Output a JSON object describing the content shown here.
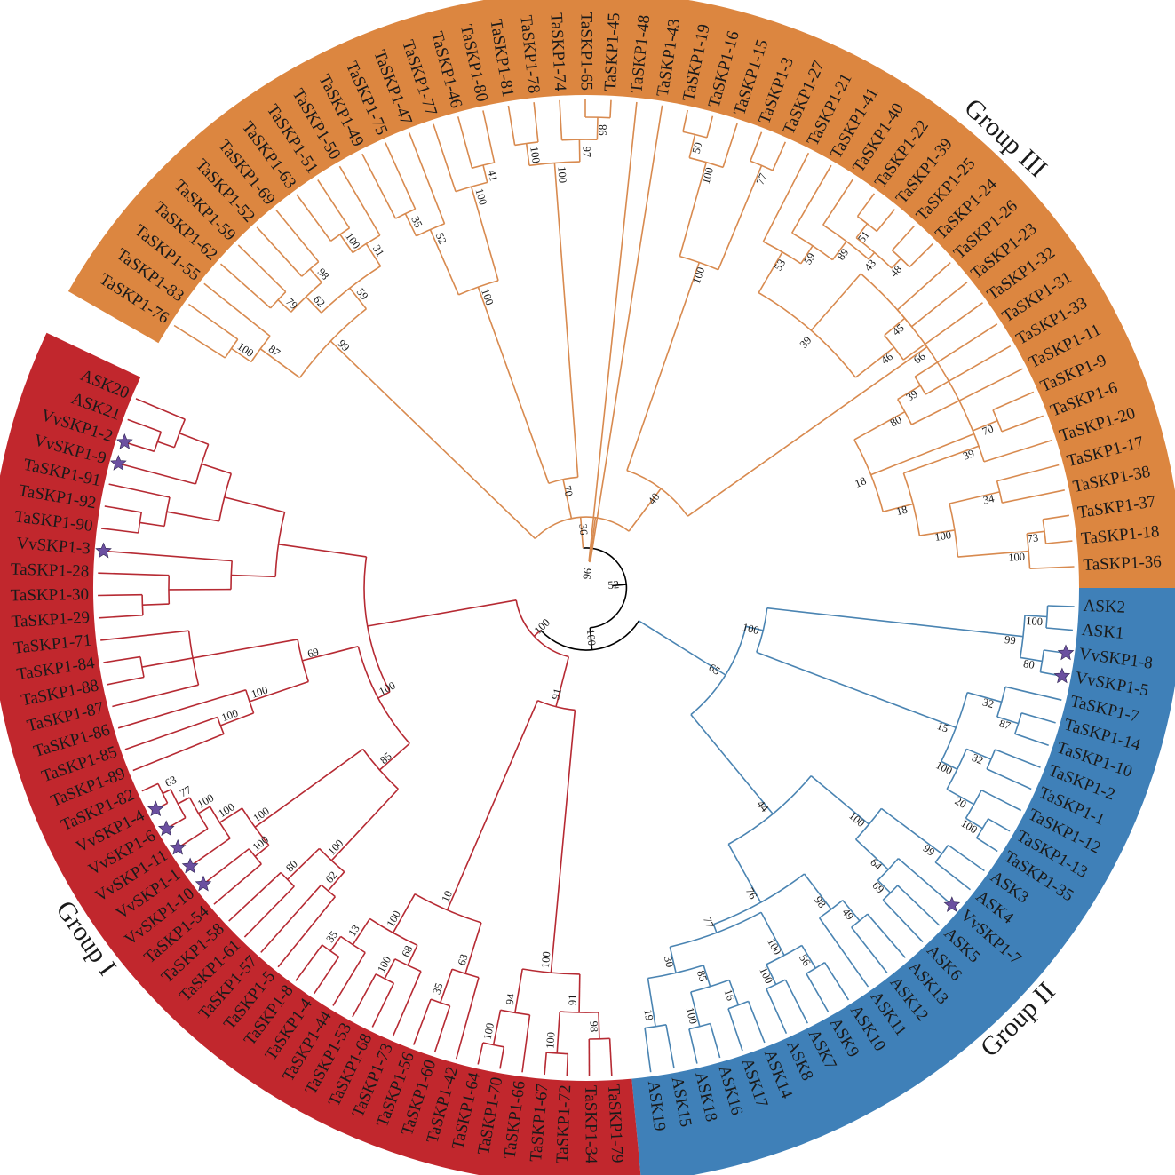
{
  "colors": {
    "group1_band": "#c1272d",
    "group2_band": "#3f80b8",
    "group3_band": "#dc8640",
    "group1_line": "#b62a33",
    "group2_line": "#4a84b2",
    "group3_line": "#d88a4f",
    "root_line": "#000000",
    "star": "#6b4fa0"
  },
  "groups": [
    {
      "id": "g3",
      "label": "Group III"
    },
    {
      "id": "g2",
      "label": "Group II"
    },
    {
      "id": "g1",
      "label": "Group I"
    }
  ],
  "leaves": {
    "g3": [
      "TaSKP1-76",
      "TaSKP1-83",
      "TaSKP1-55",
      "TaSKP1-62",
      "TaSKP1-59",
      "TaSKP1-52",
      "TaSKP1-69",
      "TaSKP1-63",
      "TaSKP1-51",
      "TaSKP1-50",
      "TaSKP1-49",
      "TaSKP1-75",
      "TaSKP1-47",
      "TaSKP1-77",
      "TaSKP1-46",
      "TaSKP1-80",
      "TaSKP1-81",
      "TaSKP1-78",
      "TaSKP1-74",
      "TaSKP1-65",
      "TaSKP1-45",
      "TaSKP1-48",
      "TaSKP1-43",
      "TaSKP1-19",
      "TaSKP1-16",
      "TaSKP1-15",
      "TaSKP1-3",
      "TaSKP1-27",
      "TaSKP1-21",
      "TaSKP1-41",
      "TaSKP1-40",
      "TaSKP1-22",
      "TaSKP1-39",
      "TaSKP1-25",
      "TaSKP1-24",
      "TaSKP1-26",
      "TaSKP1-23",
      "TaSKP1-32",
      "TaSKP1-31",
      "TaSKP1-33",
      "TaSKP1-11",
      "TaSKP1-9",
      "TaSKP1-6",
      "TaSKP1-20",
      "TaSKP1-17",
      "TaSKP1-38",
      "TaSKP1-37",
      "TaSKP1-18",
      "TaSKP1-36"
    ],
    "g2": [
      "ASK2",
      "ASK1",
      "VvSKP1-8",
      "VvSKP1-5",
      "TaSKP1-7",
      "TaSKP1-14",
      "TaSKP1-10",
      "TaSKP1-2",
      "TaSKP1-1",
      "TaSKP1-12",
      "TaSKP1-13",
      "TaSKP1-35",
      "ASK3",
      "ASK4",
      "VvSKP1-7",
      "ASK5",
      "ASK6",
      "ASK13",
      "ASK12",
      "ASK11",
      "ASK10",
      "ASK9",
      "ASK7",
      "ASK8",
      "ASK14",
      "ASK17",
      "ASK16",
      "ASK18",
      "ASK15",
      "ASK19"
    ],
    "g1": [
      "TaSKP1-79",
      "TaSKP1-34",
      "TaSKP1-72",
      "TaSKP1-67",
      "TaSKP1-66",
      "TaSKP1-70",
      "TaSKP1-64",
      "TaSKP1-42",
      "TaSKP1-60",
      "TaSKP1-56",
      "TaSKP1-73",
      "TaSKP1-68",
      "TaSKP1-53",
      "TaSKP1-44",
      "TaSKP1-4",
      "TaSKP1-8",
      "TaSKP1-5",
      "TaSKP1-57",
      "TaSKP1-61",
      "TaSKP1-58",
      "TaSKP1-54",
      "VvSKP1-10",
      "VvSKP1-1",
      "VvSKP1-11",
      "VvSKP1-6",
      "VvSKP1-4",
      "TaSKP1-82",
      "TaSKP1-89",
      "TaSKP1-85",
      "TaSKP1-86",
      "TaSKP1-87",
      "TaSKP1-88",
      "TaSKP1-84",
      "TaSKP1-71",
      "TaSKP1-29",
      "TaSKP1-30",
      "TaSKP1-28",
      "VvSKP1-3",
      "TaSKP1-90",
      "TaSKP1-92",
      "TaSKP1-91",
      "VvSKP1-9",
      "VvSKP1-2",
      "ASK21",
      "ASK20"
    ]
  },
  "starred": [
    "VvSKP1-2",
    "VvSKP1-9",
    "VvSKP1-3",
    "VvSKP1-4",
    "VvSKP1-6",
    "VvSKP1-11",
    "VvSKP1-1",
    "VvSKP1-10",
    "VvSKP1-8",
    "VvSKP1-5",
    "VvSKP1-7"
  ],
  "bootstrap": [
    "100",
    "87",
    "79",
    "99",
    "62",
    "98",
    "59",
    "100",
    "31",
    "35",
    "52",
    "100",
    "100",
    "41",
    "70",
    "100",
    "36",
    "100",
    "97",
    "98",
    "96",
    "50",
    "100",
    "100",
    "77",
    "53",
    "59",
    "89",
    "40",
    "51",
    "43",
    "39",
    "48",
    "45",
    "46",
    "66",
    "39",
    "80",
    "70",
    "18",
    "39",
    "18",
    "34",
    "100",
    "73",
    "52",
    "100",
    "100",
    "99",
    "80",
    "100",
    "32",
    "87",
    "15",
    "32",
    "100",
    "20",
    "100",
    "65",
    "99",
    "100",
    "64",
    "69",
    "44",
    "49",
    "98",
    "56",
    "76",
    "100",
    "100",
    "77",
    "16",
    "85",
    "100",
    "30",
    "19",
    "100",
    "98",
    "91",
    "100",
    "100",
    "94",
    "100",
    "91",
    "63",
    "35",
    "10",
    "68",
    "100",
    "100",
    "13",
    "35",
    "62",
    "100",
    "80",
    "100",
    "85",
    "100",
    "100",
    "100",
    "100",
    "100",
    "77",
    "63",
    "100",
    "100",
    "69"
  ]
}
